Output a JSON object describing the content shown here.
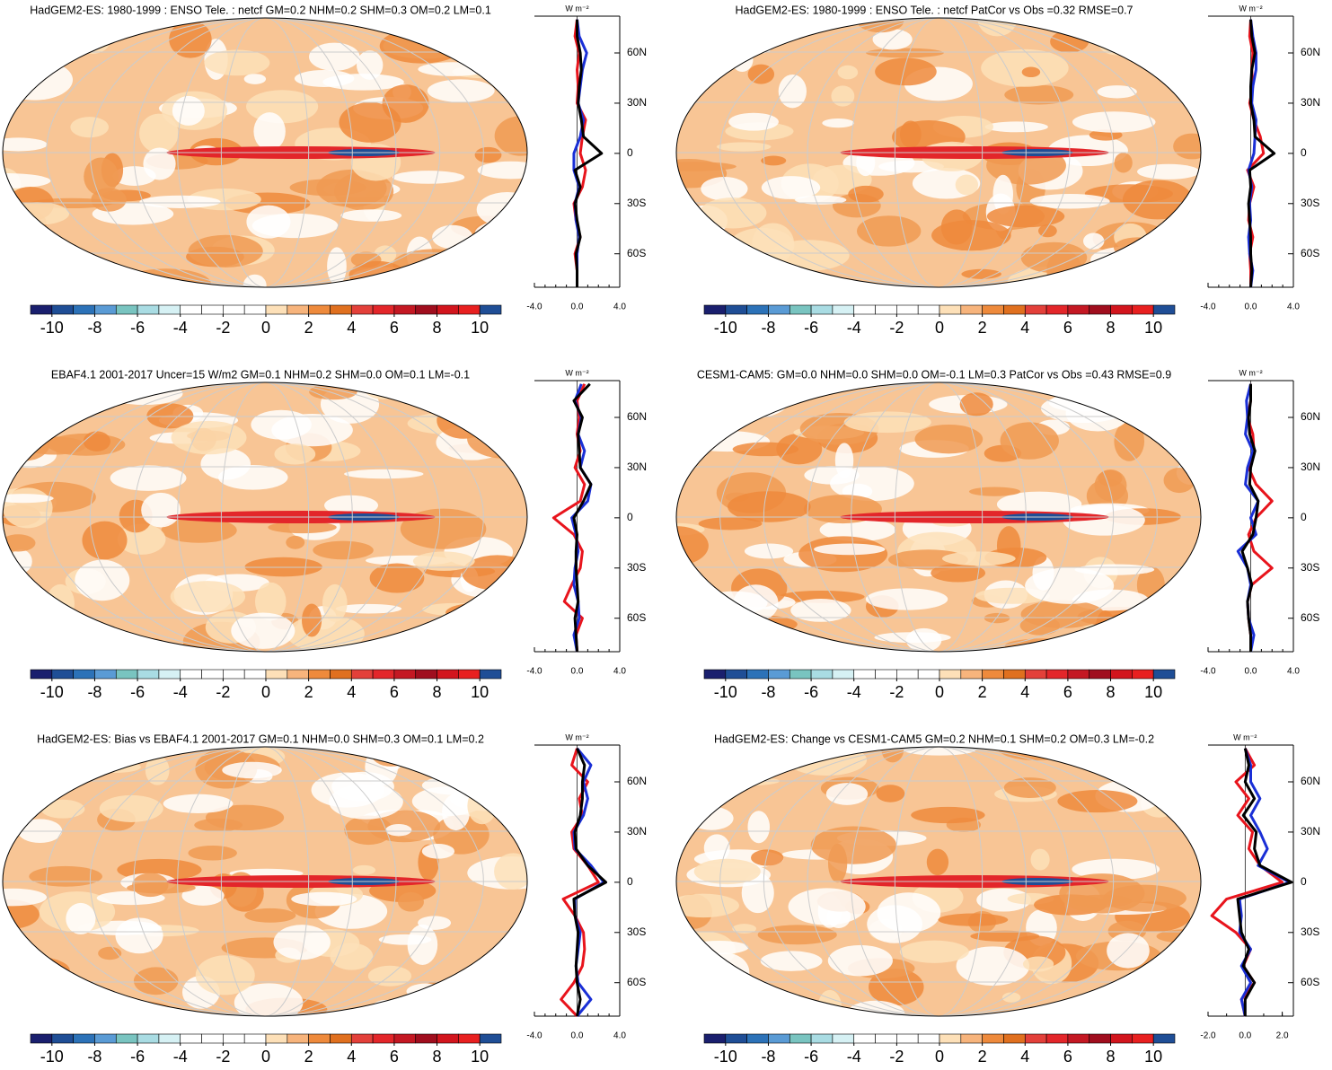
{
  "chart_data": [
    {
      "type": "zonal_mean",
      "title": "HadGEM2-ES: 1980-1999 : ENSO Tele. : netcf GM=0.2 NHM=0.2 SHM=0.3 OM=0.2 LM=0.1",
      "colorbar": {
        "colors": [
          "#1a1f6e",
          "#1f4e96",
          "#2c72b8",
          "#5a9bd5",
          "#79c4c0",
          "#a9dce3",
          "#d6f1f4",
          "#ffffff",
          "#ffffff",
          "#ffffff",
          "#ffffff",
          "#fde0b8",
          "#f7b47c",
          "#ee8a3c",
          "#e0701f",
          "#e3403a",
          "#e3262a",
          "#c41823",
          "#a00e1e",
          "#d2151d",
          "#e82020",
          "#1f4e96"
        ],
        "lim": [
          -11,
          11
        ],
        "ticks": [
          -10,
          -8,
          -6,
          -4,
          -2,
          0,
          2,
          4,
          6,
          8,
          10
        ]
      },
      "xlabel": "W m⁻²",
      "xlim": [
        -4,
        4
      ],
      "xticks": [
        {
          "value": -4,
          "label": "-4.0"
        },
        {
          "value": 0,
          "label": "0.0"
        },
        {
          "value": 4,
          "label": "4.0"
        }
      ],
      "ylim": [
        -80,
        82
      ],
      "yticks": [
        {
          "value": 60,
          "label": "60N"
        },
        {
          "value": 30,
          "label": "30N"
        },
        0,
        {
          "value": -30,
          "label": "30S"
        },
        {
          "value": -60,
          "label": "60S"
        }
      ],
      "lat": [
        -80,
        -70,
        -60,
        -50,
        -40,
        -30,
        -20,
        -10,
        0,
        10,
        20,
        30,
        40,
        50,
        60,
        70,
        80
      ],
      "series": [
        {
          "color": "#e8141c",
          "values": [
            0,
            0,
            -0.2,
            0.3,
            -0.1,
            -0.3,
            0.5,
            0.8,
            0.3,
            0.5,
            0.8,
            0,
            0.1,
            0,
            0.2,
            -0.2,
            0
          ]
        },
        {
          "color": "#1a2fd6",
          "values": [
            0,
            0,
            0,
            0.2,
            -0.1,
            -0.2,
            0.2,
            -0.3,
            -0.3,
            0.3,
            0.6,
            0.1,
            0.3,
            0.5,
            0.9,
            0.2,
            0
          ]
        },
        {
          "color": "#000000",
          "values": [
            0,
            0,
            -0.1,
            0.3,
            0,
            -0.2,
            0.3,
            -0.2,
            2.3,
            0.6,
            0.4,
            0.1,
            0.2,
            0.4,
            0.3,
            0,
            0
          ]
        }
      ]
    },
    {
      "type": "zonal_mean",
      "title": "HadGEM2-ES: 1980-1999 : ENSO Tele. : netcf PatCor vs Obs =0.32 RMSE=0.7",
      "colorbar": {
        "colors": [
          "#1a1f6e",
          "#1f4e96",
          "#2c72b8",
          "#5a9bd5",
          "#79c4c0",
          "#a9dce3",
          "#d6f1f4",
          "#ffffff",
          "#ffffff",
          "#ffffff",
          "#ffffff",
          "#fde0b8",
          "#f7b47c",
          "#ee8a3c",
          "#e0701f",
          "#e3403a",
          "#e3262a",
          "#c41823",
          "#a00e1e",
          "#d2151d",
          "#e82020",
          "#1f4e96"
        ],
        "lim": [
          -11,
          11
        ],
        "ticks": [
          -10,
          -8,
          -6,
          -4,
          -2,
          0,
          2,
          4,
          6,
          8,
          10
        ]
      },
      "xlabel": "W m⁻²",
      "xlim": [
        -4,
        4
      ],
      "xticks": [
        {
          "value": -4,
          "label": "-4.0"
        },
        {
          "value": 0,
          "label": "0.0"
        },
        {
          "value": 4,
          "label": "4.0"
        }
      ],
      "ylim": [
        -80,
        82
      ],
      "yticks": [
        {
          "value": 60,
          "label": "60N"
        },
        {
          "value": 30,
          "label": "30N"
        },
        0,
        {
          "value": -30,
          "label": "30S"
        },
        {
          "value": -60,
          "label": "60S"
        }
      ],
      "lat": [
        -80,
        -70,
        -60,
        -50,
        -40,
        -30,
        -20,
        -10,
        0,
        10,
        20,
        30,
        40,
        50,
        60,
        70,
        80
      ],
      "series": [
        {
          "color": "#e8141c",
          "values": [
            0,
            0,
            -0.1,
            0.2,
            -0.2,
            -0.1,
            0.3,
            -0.3,
            1.2,
            0.9,
            0.3,
            -0.1,
            0.2,
            0.1,
            0.2,
            -0.1,
            0
          ]
        },
        {
          "color": "#1a2fd6",
          "values": [
            0,
            0.2,
            -0.1,
            -0.2,
            0,
            -0.1,
            0.1,
            -0.2,
            0.3,
            0.4,
            0.5,
            0.1,
            0.2,
            0.5,
            0.5,
            0.2,
            0
          ]
        },
        {
          "color": "#000000",
          "values": [
            0,
            0.1,
            0,
            0,
            -0.1,
            -0.2,
            0,
            -0.1,
            2.2,
            0.4,
            0.3,
            0,
            0,
            0.1,
            0.4,
            0.1,
            0
          ]
        }
      ]
    },
    {
      "type": "zonal_mean",
      "title": "EBAF4.1 2001-2017 Uncer=15 W/m2 GM=0.1 NHM=0.2 SHM=0.0 OM=0.1 LM=-0.1",
      "colorbar": {
        "colors": [
          "#1a1f6e",
          "#1f4e96",
          "#2c72b8",
          "#5a9bd5",
          "#79c4c0",
          "#a9dce3",
          "#d6f1f4",
          "#ffffff",
          "#ffffff",
          "#ffffff",
          "#ffffff",
          "#fde0b8",
          "#f7b47c",
          "#ee8a3c",
          "#e0701f",
          "#e3403a",
          "#e3262a",
          "#c41823",
          "#a00e1e",
          "#d2151d",
          "#e82020",
          "#1f4e96"
        ],
        "lim": [
          -11,
          11
        ],
        "ticks": [
          -10,
          -8,
          -6,
          -4,
          -2,
          0,
          2,
          4,
          6,
          8,
          10
        ]
      },
      "xlabel": "W m⁻²",
      "xlim": [
        -4,
        4
      ],
      "xticks": [
        {
          "value": -4,
          "label": "-4.0"
        },
        {
          "value": 0,
          "label": "0.0"
        },
        {
          "value": 4,
          "label": "4.0"
        }
      ],
      "ylim": [
        -80,
        82
      ],
      "yticks": [
        {
          "value": 60,
          "label": "60N"
        },
        {
          "value": 30,
          "label": "30N"
        },
        0,
        {
          "value": -30,
          "label": "30S"
        },
        {
          "value": -60,
          "label": "60S"
        }
      ],
      "lat": [
        -80,
        -70,
        -60,
        -50,
        -40,
        -30,
        -20,
        -10,
        0,
        10,
        20,
        30,
        40,
        50,
        60,
        70,
        80
      ],
      "series": [
        {
          "color": "#e8141c",
          "values": [
            0,
            -0.1,
            0.5,
            -1.2,
            -0.5,
            0.3,
            0.5,
            -0.3,
            -2.2,
            0.3,
            0.7,
            -0.2,
            0.3,
            0,
            0.2,
            0,
            0.7
          ]
        },
        {
          "color": "#1a2fd6",
          "values": [
            0,
            -0.3,
            0.2,
            0.1,
            -0.3,
            -0.2,
            0.1,
            -0.1,
            -0.5,
            1.0,
            1.3,
            0.3,
            0.7,
            0.1,
            0.4,
            -0.2,
            0.4
          ]
        },
        {
          "color": "#000000",
          "values": [
            0,
            -0.1,
            -0.2,
            0.1,
            0,
            -0.1,
            -0.1,
            0,
            -0.3,
            0.6,
            1.3,
            0.3,
            0.2,
            0.1,
            0.5,
            -0.3,
            1.2
          ]
        }
      ]
    },
    {
      "type": "zonal_mean",
      "title": "CESM1-CAM5: GM=0.0 NHM=0.0 SHM=0.0 OM=-0.1 LM=0.3 PatCor vs Obs =0.43 RMSE=0.9",
      "colorbar": {
        "colors": [
          "#1a1f6e",
          "#1f4e96",
          "#2c72b8",
          "#5a9bd5",
          "#79c4c0",
          "#a9dce3",
          "#d6f1f4",
          "#ffffff",
          "#ffffff",
          "#ffffff",
          "#ffffff",
          "#fde0b8",
          "#f7b47c",
          "#ee8a3c",
          "#e0701f",
          "#e3403a",
          "#e3262a",
          "#c41823",
          "#a00e1e",
          "#d2151d",
          "#e82020",
          "#1f4e96"
        ],
        "lim": [
          -11,
          11
        ],
        "ticks": [
          -10,
          -8,
          -6,
          -4,
          -2,
          0,
          2,
          4,
          6,
          8,
          10
        ]
      },
      "xlabel": "W m⁻²",
      "xlim": [
        -4,
        4
      ],
      "xticks": [
        {
          "value": -4,
          "label": "-4.0"
        },
        {
          "value": 0,
          "label": "0.0"
        },
        {
          "value": 4,
          "label": "4.0"
        }
      ],
      "ylim": [
        -80,
        82
      ],
      "yticks": [
        {
          "value": 60,
          "label": "60N"
        },
        {
          "value": 30,
          "label": "30N"
        },
        0,
        {
          "value": -30,
          "label": "30S"
        },
        {
          "value": -60,
          "label": "60S"
        }
      ],
      "lat": [
        -80,
        -70,
        -60,
        -50,
        -40,
        -30,
        -20,
        -10,
        0,
        10,
        20,
        30,
        40,
        50,
        60,
        70,
        80
      ],
      "series": [
        {
          "color": "#e8141c",
          "values": [
            0,
            0,
            -0.2,
            -0.3,
            0.1,
            2.0,
            0.3,
            -0.2,
            0.5,
            2.0,
            0.5,
            -0.2,
            0.3,
            0.2,
            -0.3,
            0,
            0
          ]
        },
        {
          "color": "#1a2fd6",
          "values": [
            0,
            0.3,
            -0.2,
            -0.3,
            0,
            -0.3,
            -1.2,
            0.5,
            0,
            0.7,
            -0.5,
            -0.3,
            0.2,
            -0.5,
            -0.3,
            -0.4,
            0
          ]
        },
        {
          "color": "#000000",
          "values": [
            0,
            0,
            -0.2,
            -0.3,
            0.1,
            -0.3,
            -0.8,
            0.2,
            0.5,
            0.7,
            -0.1,
            0,
            0.4,
            -0.1,
            -0.2,
            0,
            0
          ]
        }
      ]
    },
    {
      "type": "zonal_mean",
      "title": "HadGEM2-ES: Bias vs EBAF4.1 2001-2017 GM=0.1 NHM=0.0 SHM=0.3 OM=0.1 LM=0.2",
      "colorbar": {
        "colors": [
          "#1a1f6e",
          "#1f4e96",
          "#2c72b8",
          "#5a9bd5",
          "#79c4c0",
          "#a9dce3",
          "#d6f1f4",
          "#ffffff",
          "#ffffff",
          "#ffffff",
          "#ffffff",
          "#fde0b8",
          "#f7b47c",
          "#ee8a3c",
          "#e0701f",
          "#e3403a",
          "#e3262a",
          "#c41823",
          "#a00e1e",
          "#d2151d",
          "#e82020",
          "#1f4e96"
        ],
        "lim": [
          -11,
          11
        ],
        "ticks": [
          -10,
          -8,
          -6,
          -4,
          -2,
          0,
          2,
          4,
          6,
          8,
          10
        ]
      },
      "xlabel": "W m⁻²",
      "xlim": [
        -4,
        4
      ],
      "xticks": [
        {
          "value": -4,
          "label": "-4.0"
        },
        {
          "value": 0,
          "label": "0.0"
        },
        {
          "value": 4,
          "label": "4.0"
        }
      ],
      "ylim": [
        -80,
        82
      ],
      "yticks": [
        {
          "value": 60,
          "label": "60N"
        },
        {
          "value": 30,
          "label": "30N"
        },
        0,
        {
          "value": -30,
          "label": "30S"
        },
        {
          "value": -60,
          "label": "60S"
        }
      ],
      "lat": [
        -80,
        -70,
        -60,
        -50,
        -40,
        -30,
        -20,
        -10,
        0,
        10,
        20,
        30,
        40,
        50,
        60,
        70,
        80
      ],
      "series": [
        {
          "color": "#e8141c",
          "values": [
            0,
            -1.5,
            -0.3,
            0.5,
            0.7,
            0.6,
            -0.2,
            -1.3,
            2.0,
            1.0,
            -0.3,
            -0.5,
            0.5,
            0.2,
            1.0,
            -0.5,
            0
          ]
        },
        {
          "color": "#1a2fd6",
          "values": [
            0,
            1.3,
            0.1,
            -0.1,
            0.1,
            0.3,
            -0.2,
            -0.2,
            2.5,
            1.3,
            -0.2,
            -0.3,
            0.6,
            1.0,
            0.6,
            1.3,
            0
          ]
        },
        {
          "color": "#000000",
          "values": [
            0,
            0.3,
            0,
            -0.1,
            0,
            0.1,
            -0.2,
            -0.3,
            2.7,
            1.0,
            -0.1,
            -0.2,
            0.3,
            0.5,
            0.5,
            0.7,
            0
          ]
        }
      ]
    },
    {
      "type": "zonal_mean",
      "title": "HadGEM2-ES: Change vs CESM1-CAM5 GM=0.2 NHM=0.1 SHM=0.2 OM=0.3 LM=-0.2",
      "colorbar": {
        "colors": [
          "#1a1f6e",
          "#1f4e96",
          "#2c72b8",
          "#5a9bd5",
          "#79c4c0",
          "#a9dce3",
          "#d6f1f4",
          "#ffffff",
          "#ffffff",
          "#ffffff",
          "#ffffff",
          "#fde0b8",
          "#f7b47c",
          "#ee8a3c",
          "#e0701f",
          "#e3403a",
          "#e3262a",
          "#c41823",
          "#a00e1e",
          "#d2151d",
          "#e82020",
          "#1f4e96"
        ],
        "lim": [
          -11,
          11
        ],
        "ticks": [
          -10,
          -8,
          -6,
          -4,
          -2,
          0,
          2,
          4,
          6,
          8,
          10
        ]
      },
      "xlabel": "W m⁻²",
      "xlim": [
        -2,
        2.6
      ],
      "xticks": [
        {
          "value": -2,
          "label": "-2.0"
        },
        {
          "value": 0,
          "label": "0.0"
        },
        {
          "value": 2,
          "label": "2.0"
        }
      ],
      "ylim": [
        -80,
        82
      ],
      "yticks": [
        {
          "value": 60,
          "label": "60N"
        },
        {
          "value": 30,
          "label": "30N"
        },
        0,
        {
          "value": -30,
          "label": "30S"
        },
        {
          "value": -60,
          "label": "60S"
        }
      ],
      "lat": [
        -80,
        -70,
        -60,
        -50,
        -40,
        -30,
        -20,
        -10,
        0,
        10,
        20,
        30,
        40,
        50,
        60,
        70,
        80
      ],
      "series": [
        {
          "color": "#e8141c",
          "values": [
            0,
            -0.2,
            0.5,
            -0.1,
            0.3,
            -0.5,
            -1.8,
            -1.0,
            2.0,
            0.8,
            0.2,
            0.4,
            -0.4,
            0.2,
            -0.5,
            0.5,
            0
          ]
        },
        {
          "color": "#1a2fd6",
          "values": [
            0,
            -0.2,
            0.3,
            -0.2,
            0.3,
            -0.3,
            -0.2,
            -0.3,
            2.4,
            0.7,
            1.2,
            0.8,
            0.3,
            0.8,
            0.3,
            0.3,
            0
          ]
        },
        {
          "color": "#000000",
          "values": [
            0,
            0,
            0.5,
            -0.1,
            0.2,
            -0.2,
            -0.3,
            -0.4,
            2.5,
            0.8,
            0.5,
            0.6,
            -0.1,
            0.5,
            0,
            0.2,
            0
          ]
        }
      ]
    }
  ]
}
